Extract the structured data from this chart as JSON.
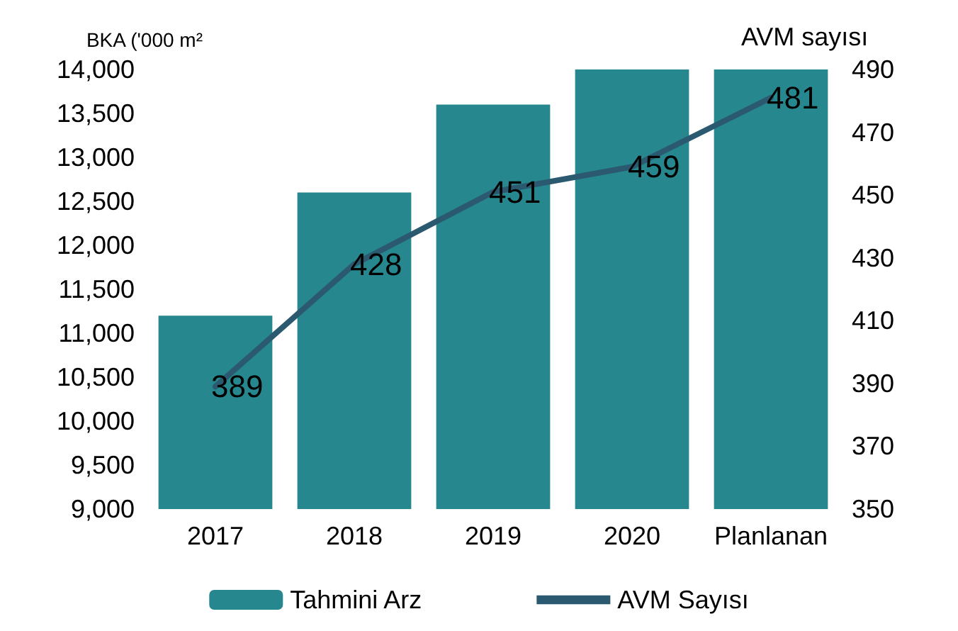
{
  "chart_data": {
    "type": "bar",
    "ylabel": "BKA ('000 m²",
    "y2label": "AVM sayısı",
    "categories": [
      "2017",
      "2018",
      "2019",
      "2020",
      "Planlanan"
    ],
    "series": [
      {
        "name": "Tahmini Arz",
        "color": "#26878f",
        "values": [
          11200,
          12600,
          13600,
          14000,
          14000
        ]
      },
      {
        "name": "AVM Sayısı",
        "type": "line",
        "axis": "y2",
        "color": "#2b5a70",
        "values": [
          389,
          428,
          451,
          459,
          481
        ],
        "data_labels": true
      }
    ],
    "ylim": [
      9000,
      14000
    ],
    "yticks": [
      {
        "value": 9000,
        "label": "9,000"
      },
      {
        "value": 9500,
        "label": "9,500"
      },
      {
        "value": 10000,
        "label": "10,000"
      },
      {
        "value": 10500,
        "label": "10,500"
      },
      {
        "value": 11000,
        "label": "11,000"
      },
      {
        "value": 11500,
        "label": "11,500"
      },
      {
        "value": 12000,
        "label": "12,000"
      },
      {
        "value": 12500,
        "label": "12,500"
      },
      {
        "value": 13000,
        "label": "13,000"
      },
      {
        "value": 13500,
        "label": "13,500"
      },
      {
        "value": 14000,
        "label": "14,000"
      }
    ],
    "y2lim": [
      350,
      490
    ],
    "y2ticks": [
      350,
      370,
      390,
      410,
      430,
      450,
      470,
      490
    ],
    "grid": false,
    "legend": "bottom",
    "marker": "none",
    "line_style": "solid"
  }
}
